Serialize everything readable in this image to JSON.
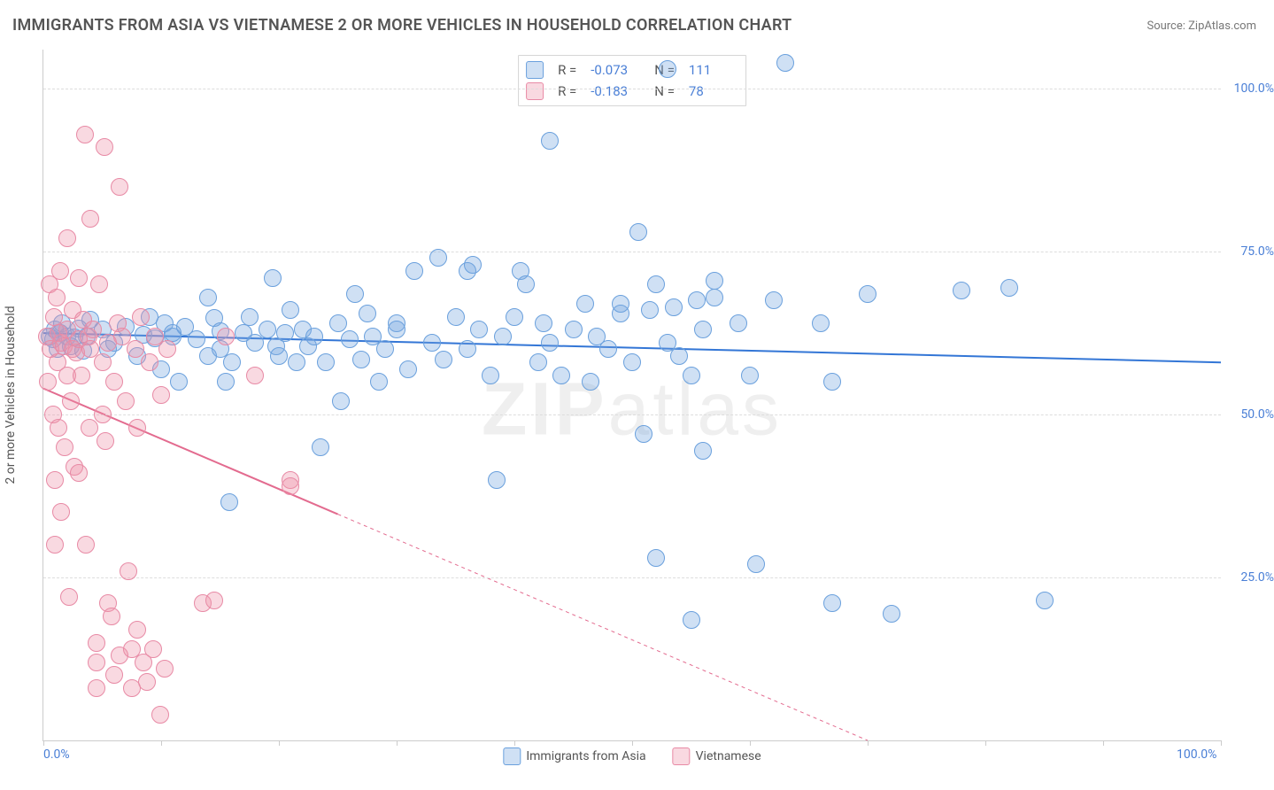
{
  "title": "IMMIGRANTS FROM ASIA VS VIETNAMESE 2 OR MORE VEHICLES IN HOUSEHOLD CORRELATION CHART",
  "source": "Source: ZipAtlas.com",
  "watermark_a": "ZIP",
  "watermark_b": "atlas",
  "ylabel": "2 or more Vehicles in Household",
  "chart": {
    "type": "scatter",
    "xlim": [
      0,
      100
    ],
    "ylim": [
      0,
      106
    ],
    "background_color": "#ffffff",
    "grid_color": "#dddddd",
    "axis_color": "#cccccc",
    "tick_label_color": "#4a7fd6",
    "tick_fontsize": 14,
    "axis_label_color": "#555555",
    "axis_label_fontsize": 14,
    "yticks": [
      25,
      50,
      75,
      100
    ],
    "ytick_labels": [
      "25.0%",
      "50.0%",
      "75.0%",
      "100.0%"
    ],
    "xtick_marks": [
      0,
      10,
      20,
      30,
      40,
      50,
      60,
      70,
      80,
      90,
      100
    ],
    "xtick_labels": [
      {
        "pos": 0,
        "text": "0.0%"
      },
      {
        "pos": 100,
        "text": "100.0%"
      }
    ],
    "marker_radius": 9,
    "marker_border_width": 1,
    "series": [
      {
        "name": "Immigrants from Asia",
        "color_fill": "rgba(117,165,224,0.35)",
        "color_stroke": "#6aa0dd",
        "line_color": "#3376d6",
        "line_width": 2,
        "line_dash": "none",
        "correlation": {
          "r": "-0.073",
          "n": "111"
        },
        "trend": {
          "x1": 0,
          "y1": 62.5,
          "x2": 100,
          "y2": 58
        },
        "points": [
          [
            0.5,
            62
          ],
          [
            0.8,
            61.5
          ],
          [
            1,
            63
          ],
          [
            1.2,
            60
          ],
          [
            1.4,
            62.5
          ],
          [
            1.6,
            64
          ],
          [
            2,
            62
          ],
          [
            2.3,
            60.5
          ],
          [
            2.6,
            61.8
          ],
          [
            3,
            63.2
          ],
          [
            3.4,
            59.8
          ],
          [
            3.7,
            62
          ],
          [
            4,
            64.5
          ],
          [
            5,
            63
          ],
          [
            5.5,
            60
          ],
          [
            6,
            61
          ],
          [
            7,
            63.5
          ],
          [
            8,
            59
          ],
          [
            8.5,
            62.2
          ],
          [
            9,
            65
          ],
          [
            9.5,
            61.7
          ],
          [
            10,
            57
          ],
          [
            10.3,
            64
          ],
          [
            11,
            62
          ],
          [
            11,
            62.5
          ],
          [
            11.5,
            55
          ],
          [
            12,
            63.5
          ],
          [
            13,
            61.5
          ],
          [
            14,
            59
          ],
          [
            14.5,
            64.8
          ],
          [
            14,
            68
          ],
          [
            15,
            62.8
          ],
          [
            15.5,
            55
          ],
          [
            15.8,
            36.5
          ],
          [
            15,
            60
          ],
          [
            16,
            58
          ],
          [
            17,
            62.5
          ],
          [
            17.5,
            65
          ],
          [
            18,
            61
          ],
          [
            19,
            63
          ],
          [
            19.5,
            71
          ],
          [
            19.8,
            60.5
          ],
          [
            20,
            59
          ],
          [
            20.5,
            62.5
          ],
          [
            21,
            66
          ],
          [
            21.5,
            58
          ],
          [
            22,
            63
          ],
          [
            22.5,
            60.5
          ],
          [
            23,
            62
          ],
          [
            23.5,
            45
          ],
          [
            24,
            58
          ],
          [
            25,
            64
          ],
          [
            25.3,
            52
          ],
          [
            26,
            61.5
          ],
          [
            26.5,
            68.5
          ],
          [
            27,
            58.5
          ],
          [
            27.5,
            65.5
          ],
          [
            28,
            62
          ],
          [
            28.5,
            55
          ],
          [
            29,
            60
          ],
          [
            30,
            64
          ],
          [
            30,
            63
          ],
          [
            31,
            57
          ],
          [
            31.5,
            72
          ],
          [
            33,
            61
          ],
          [
            33.5,
            74
          ],
          [
            34,
            58.5
          ],
          [
            35,
            65
          ],
          [
            36,
            60
          ],
          [
            36,
            72
          ],
          [
            36.5,
            73
          ],
          [
            37,
            63
          ],
          [
            38,
            56
          ],
          [
            38.5,
            40
          ],
          [
            39,
            62
          ],
          [
            40,
            65
          ],
          [
            40.5,
            72
          ],
          [
            41,
            70
          ],
          [
            43,
            92
          ],
          [
            42,
            58
          ],
          [
            42.5,
            64
          ],
          [
            43,
            61
          ],
          [
            44,
            56
          ],
          [
            45,
            63
          ],
          [
            46,
            67
          ],
          [
            46.5,
            55
          ],
          [
            47,
            62
          ],
          [
            48,
            60
          ],
          [
            49,
            65.5
          ],
          [
            49,
            67
          ],
          [
            50,
            58
          ],
          [
            50.5,
            78
          ],
          [
            51,
            47
          ],
          [
            51.5,
            66
          ],
          [
            52,
            28
          ],
          [
            52,
            70
          ],
          [
            53,
            61
          ],
          [
            53,
            103
          ],
          [
            53.5,
            66.5
          ],
          [
            54,
            59
          ],
          [
            55,
            56
          ],
          [
            55,
            18.5
          ],
          [
            55.5,
            67.5
          ],
          [
            56,
            44.5
          ],
          [
            56,
            63
          ],
          [
            57,
            70.5
          ],
          [
            57,
            68
          ],
          [
            59,
            64
          ],
          [
            60,
            56
          ],
          [
            60.5,
            27
          ],
          [
            62,
            67.5
          ],
          [
            63,
            104
          ],
          [
            66,
            64
          ],
          [
            67,
            21
          ],
          [
            67,
            55
          ],
          [
            70,
            68.5
          ],
          [
            72,
            19.5
          ],
          [
            78,
            69
          ],
          [
            82,
            69.5
          ],
          [
            85,
            21.5
          ]
        ]
      },
      {
        "name": "Vietnamese",
        "color_fill": "rgba(238,145,170,0.35)",
        "color_stroke": "#e88aa5",
        "line_color": "#e36b8f",
        "line_width": 2,
        "line_dash": "4 4",
        "correlation": {
          "r": "-0.183",
          "n": "78"
        },
        "trend": {
          "x1": 0,
          "y1": 54,
          "x2": 70,
          "y2": 0
        },
        "trend_solid_until_x": 25,
        "points": [
          [
            0.3,
            62
          ],
          [
            0.4,
            55
          ],
          [
            0.5,
            70
          ],
          [
            0.6,
            60
          ],
          [
            0.8,
            50
          ],
          [
            0.9,
            65
          ],
          [
            1,
            40
          ],
          [
            1,
            30
          ],
          [
            1.1,
            68
          ],
          [
            1.2,
            58
          ],
          [
            1.3,
            48
          ],
          [
            1.3,
            62.5
          ],
          [
            1.4,
            72
          ],
          [
            1.5,
            35
          ],
          [
            1.5,
            61
          ],
          [
            1.7,
            60.5
          ],
          [
            1.8,
            45
          ],
          [
            2,
            63
          ],
          [
            2,
            56
          ],
          [
            2,
            77
          ],
          [
            2.2,
            22
          ],
          [
            2.3,
            52
          ],
          [
            2.5,
            60
          ],
          [
            2.5,
            66
          ],
          [
            2.6,
            42
          ],
          [
            2.8,
            59.5
          ],
          [
            3,
            61.5
          ],
          [
            3,
            41
          ],
          [
            3,
            71
          ],
          [
            3.2,
            56
          ],
          [
            3.4,
            64.5
          ],
          [
            3.5,
            93
          ],
          [
            3.6,
            30
          ],
          [
            3.8,
            62
          ],
          [
            3.9,
            48
          ],
          [
            4,
            80
          ],
          [
            4,
            60
          ],
          [
            4.2,
            63
          ],
          [
            4.5,
            12
          ],
          [
            4.5,
            8
          ],
          [
            4.5,
            15
          ],
          [
            4.7,
            70
          ],
          [
            5,
            58
          ],
          [
            5,
            50
          ],
          [
            5.2,
            91
          ],
          [
            5.3,
            46
          ],
          [
            5.5,
            61
          ],
          [
            5.5,
            21
          ],
          [
            5.8,
            19
          ],
          [
            6,
            55
          ],
          [
            6,
            10
          ],
          [
            6.3,
            64
          ],
          [
            6.5,
            85
          ],
          [
            6.5,
            13
          ],
          [
            6.7,
            62
          ],
          [
            7,
            52
          ],
          [
            7.2,
            26
          ],
          [
            7.5,
            14
          ],
          [
            7.5,
            8
          ],
          [
            7.8,
            60
          ],
          [
            8,
            48
          ],
          [
            8,
            17
          ],
          [
            8.3,
            65
          ],
          [
            8.5,
            12
          ],
          [
            8.8,
            9
          ],
          [
            9,
            58
          ],
          [
            9.3,
            14
          ],
          [
            9.5,
            62
          ],
          [
            9.9,
            4
          ],
          [
            10,
            53
          ],
          [
            10.3,
            11
          ],
          [
            10.5,
            60
          ],
          [
            13.5,
            21
          ],
          [
            14.5,
            21.5
          ],
          [
            15.5,
            62
          ],
          [
            18,
            56
          ],
          [
            21,
            40
          ],
          [
            21,
            39
          ]
        ]
      }
    ]
  },
  "legend_top": {
    "r_label": "R =",
    "n_label": "N ="
  },
  "legend_bottom": [
    {
      "swatch_fill": "rgba(117,165,224,0.35)",
      "swatch_stroke": "#6aa0dd",
      "label": "Immigrants from Asia"
    },
    {
      "swatch_fill": "rgba(238,145,170,0.35)",
      "swatch_stroke": "#e88aa5",
      "label": "Vietnamese"
    }
  ]
}
